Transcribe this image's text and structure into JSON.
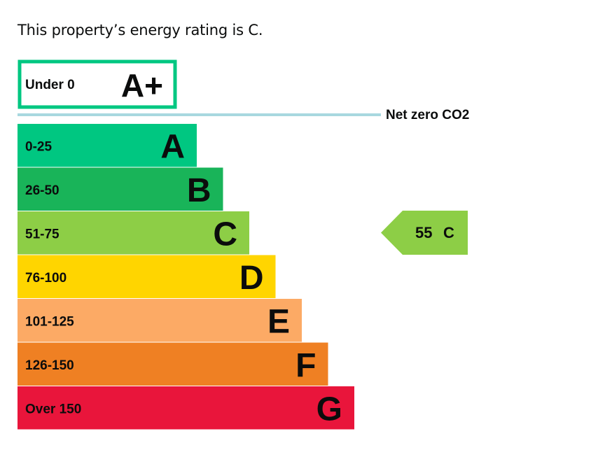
{
  "heading": "This property’s energy rating is C.",
  "chart_data": {
    "type": "bar",
    "title": "",
    "aplus": {
      "band": "Under 0",
      "letter": "A+",
      "border_color": "#00c781"
    },
    "net_zero_label": "Net zero CO2",
    "net_zero_color": "#a8d8df",
    "bands": [
      {
        "range": "0-25",
        "letter": "A",
        "color": "#00c781"
      },
      {
        "range": "26-50",
        "letter": "B",
        "color": "#19b459"
      },
      {
        "range": "51-75",
        "letter": "C",
        "color": "#8dce46"
      },
      {
        "range": "76-100",
        "letter": "D",
        "color": "#ffd500"
      },
      {
        "range": "101-125",
        "letter": "E",
        "color": "#fcaa65"
      },
      {
        "range": "126-150",
        "letter": "F",
        "color": "#ef8023"
      },
      {
        "range": "Over 150",
        "letter": "G",
        "color": "#e9153b"
      }
    ],
    "current": {
      "score": "55",
      "letter": "C",
      "color": "#8dce46"
    }
  }
}
